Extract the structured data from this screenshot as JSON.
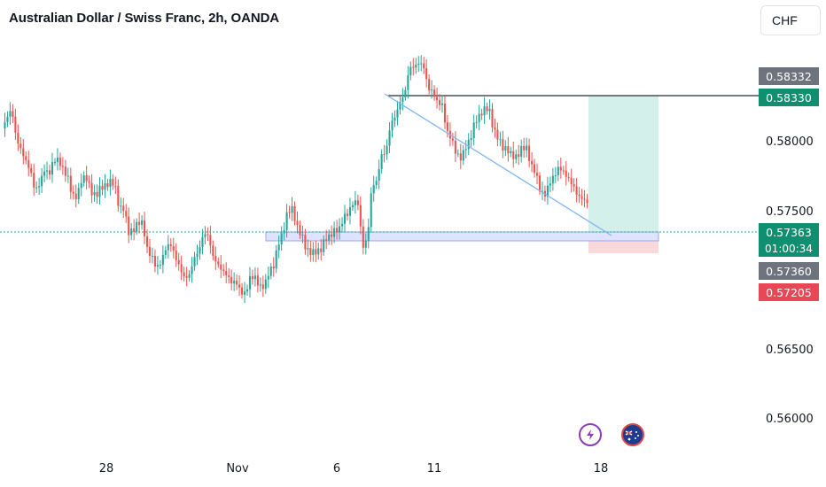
{
  "header": {
    "title": "Australian Dollar / Swiss Franc, 2h, OANDA",
    "currency_button": "CHF"
  },
  "price_axis": {
    "ticks": [
      "0.58000",
      "0.57500",
      "0.56500",
      "0.56000"
    ],
    "tags": {
      "upper_gray": "0.58332",
      "target_green": "0.58330",
      "current_price": "0.57363",
      "countdown": "01:00:34",
      "entry_gray": "0.57360",
      "stop_red": "0.57205"
    }
  },
  "time_axis": {
    "labels": [
      "28",
      "Nov",
      "6",
      "11",
      "18"
    ]
  },
  "badges": {
    "lightning": "lightning-icon",
    "flag": "australia-flag-icon"
  },
  "colors": {
    "up": "#26a69a",
    "down": "#ef5350",
    "target_zone": "#d4f0ea",
    "stop_zone": "#f9d9dc",
    "support_zone": "#dfe3ff",
    "trendline": "#7fb6f0",
    "current_line": "#1fa98f"
  },
  "chart_data": {
    "type": "candlestick",
    "symbol": "AUDCHF",
    "timeframe": "2h",
    "y_range": [
      0.556,
      0.5855
    ],
    "levels": {
      "target": 0.5833,
      "current": 0.57363,
      "entry": 0.5736,
      "stop": 0.57205
    },
    "trendline": [
      [
        0.5836,
        "start-high"
      ],
      [
        0.5734,
        "end"
      ]
    ],
    "path": [
      [
        0.5785,
        0.579
      ],
      [
        0.5795,
        0.5775
      ],
      [
        0.577,
        0.5765
      ],
      [
        0.576,
        0.5745
      ],
      [
        0.5748,
        0.5755
      ],
      [
        0.575,
        0.576
      ],
      [
        0.5762,
        0.5758
      ],
      [
        0.5755,
        0.5742
      ],
      [
        0.574,
        0.575
      ],
      [
        0.5748,
        0.5738
      ],
      [
        0.5736,
        0.5745
      ],
      [
        0.5748,
        0.5752
      ],
      [
        0.575,
        0.573
      ],
      [
        0.5728,
        0.571
      ],
      [
        0.5712,
        0.572
      ],
      [
        0.5722,
        0.5705
      ],
      [
        0.57,
        0.569
      ],
      [
        0.5692,
        0.57
      ],
      [
        0.5702,
        0.5695
      ],
      [
        0.569,
        0.5685
      ],
      [
        0.5688,
        0.5698
      ],
      [
        0.57,
        0.571
      ],
      [
        0.5708,
        0.5695
      ],
      [
        0.5692,
        0.569
      ],
      [
        0.5688,
        0.5682
      ],
      [
        0.568,
        0.567
      ],
      [
        0.5668,
        0.568
      ],
      [
        0.5682,
        0.5678
      ],
      [
        0.568,
        0.569
      ],
      [
        0.5692,
        0.5705
      ],
      [
        0.571,
        0.5725
      ],
      [
        0.5728,
        0.5718
      ],
      [
        0.5715,
        0.5705
      ],
      [
        0.5702,
        0.57
      ],
      [
        0.5698,
        0.5706
      ],
      [
        0.5708,
        0.5715
      ],
      [
        0.5718,
        0.5728
      ],
      [
        0.573,
        0.5735
      ],
      [
        0.5732,
        0.57
      ],
      [
        0.5705,
        0.5745
      ],
      [
        0.575,
        0.577
      ],
      [
        0.5772,
        0.579
      ],
      [
        0.5792,
        0.58
      ],
      [
        0.5805,
        0.5825
      ],
      [
        0.5828,
        0.5833
      ],
      [
        0.5832,
        0.5815
      ],
      [
        0.581,
        0.58
      ],
      [
        0.5798,
        0.578
      ],
      [
        0.5778,
        0.577
      ],
      [
        0.5768,
        0.5775
      ],
      [
        0.5778,
        0.5788
      ],
      [
        0.579,
        0.5795
      ],
      [
        0.5798,
        0.5785
      ],
      [
        0.5782,
        0.5775
      ],
      [
        0.5772,
        0.5765
      ],
      [
        0.5762,
        0.5768
      ],
      [
        0.577,
        0.576
      ],
      [
        0.5758,
        0.5745
      ],
      [
        0.5742,
        0.5748
      ],
      [
        0.575,
        0.5755
      ],
      [
        0.5752,
        0.575
      ],
      [
        0.5748,
        0.5742
      ],
      [
        0.574,
        0.5735
      ]
    ]
  }
}
